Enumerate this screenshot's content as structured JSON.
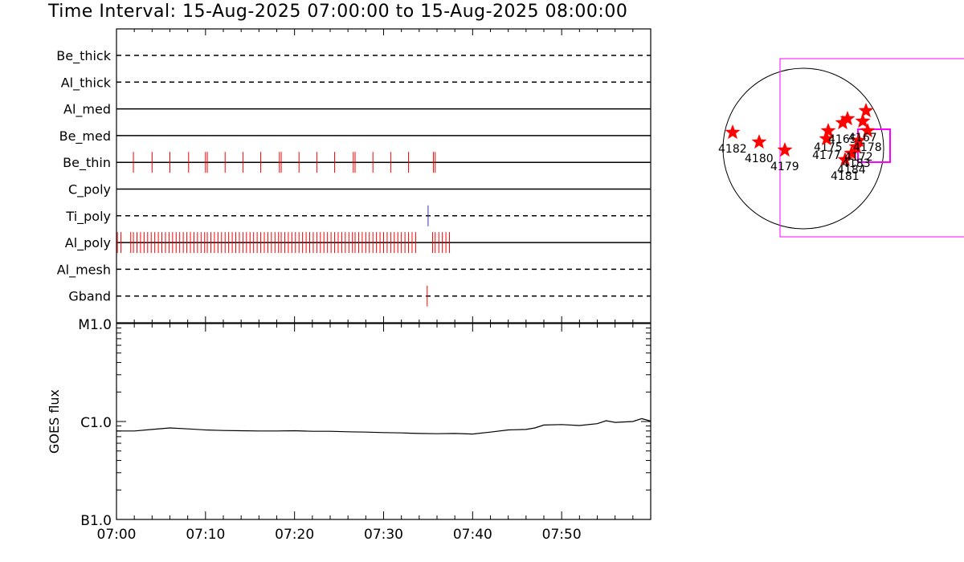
{
  "header": {
    "title": "Time Interval: 15-Aug-2025 07:00:00 to 15-Aug-2025 08:00:00"
  },
  "chart_data": [
    {
      "type": "timeline",
      "x_range_minutes": [
        0,
        60
      ],
      "x_tick_labels": [
        "07:00",
        "07:10",
        "07:20",
        "07:30",
        "07:40",
        "07:50"
      ],
      "x_tick_minutes": [
        0,
        10,
        20,
        30,
        40,
        50
      ],
      "rows": [
        {
          "label": "Be_thick",
          "style": "dashed",
          "events": [],
          "event_color": "#ff0000"
        },
        {
          "label": "Al_thick",
          "style": "dashed",
          "events": [],
          "event_color": "#ff0000"
        },
        {
          "label": "Al_med",
          "style": "solid",
          "events": [],
          "event_color": "#ff0000"
        },
        {
          "label": "Be_med",
          "style": "solid",
          "events": [],
          "event_color": "#ff0000"
        },
        {
          "label": "Be_thin",
          "style": "solid",
          "event_color": "#ff0000",
          "events": [
            1.9,
            4.0,
            6.0,
            8.1,
            10.0,
            10.2,
            12.2,
            14.2,
            16.2,
            18.3,
            18.5,
            20.5,
            22.5,
            24.5,
            26.6,
            26.8,
            28.8,
            30.8,
            32.8,
            35.6,
            35.8
          ]
        },
        {
          "label": "C_poly",
          "style": "solid",
          "events": [],
          "event_color": "#ff0000"
        },
        {
          "label": "Ti_poly",
          "style": "dashed",
          "event_color": "#3333aa",
          "events": [
            35.0
          ]
        },
        {
          "label": "Al_poly",
          "style": "solid",
          "event_color": "#ff0000",
          "events": [
            0.1,
            0.5,
            1.6,
            1.9,
            2.3,
            2.7,
            3.1,
            3.5,
            3.9,
            4.3,
            4.7,
            5.1,
            5.5,
            5.9,
            6.3,
            6.7,
            7.1,
            7.5,
            7.9,
            8.3,
            8.7,
            9.1,
            9.5,
            9.9,
            10.2,
            10.6,
            11.0,
            11.4,
            11.8,
            12.2,
            12.6,
            13.0,
            13.4,
            13.8,
            14.2,
            14.6,
            15.0,
            15.4,
            15.8,
            16.2,
            16.6,
            17.0,
            17.4,
            17.8,
            18.2,
            18.5,
            18.9,
            19.3,
            19.7,
            20.1,
            20.5,
            20.9,
            21.3,
            21.7,
            22.1,
            22.5,
            22.9,
            23.3,
            23.7,
            24.1,
            24.5,
            24.9,
            25.3,
            25.7,
            26.1,
            26.5,
            26.8,
            27.2,
            27.6,
            28.0,
            28.4,
            28.8,
            29.2,
            29.6,
            30.0,
            30.4,
            30.8,
            31.2,
            31.6,
            32.0,
            32.4,
            32.8,
            33.2,
            33.6,
            35.5,
            35.8,
            36.2,
            36.6,
            37.0,
            37.4
          ]
        },
        {
          "label": "Al_mesh",
          "style": "dashed",
          "events": [],
          "event_color": "#ff0000"
        },
        {
          "label": "Gband",
          "style": "dashed",
          "event_color": "#ff0000",
          "events": [
            34.9
          ]
        }
      ]
    },
    {
      "type": "line",
      "ylabel": "GOES flux",
      "y_scale": "log",
      "y_tick_labels": [
        "M1.0",
        "C1.0",
        "B1.0"
      ],
      "x_range_minutes": [
        0,
        60
      ],
      "x_tick_labels": [
        "07:00",
        "07:10",
        "07:20",
        "07:30",
        "07:40",
        "07:50"
      ],
      "series": [
        {
          "color": "#000000",
          "x": [
            0,
            2,
            4,
            6,
            8,
            10,
            12,
            14,
            16,
            18,
            20,
            22,
            24,
            26,
            28,
            30,
            32,
            34,
            36,
            38,
            40,
            42,
            44,
            46,
            47,
            48,
            50,
            52,
            54,
            55,
            56,
            58,
            59,
            60
          ],
          "y": [
            8e-07,
            8e-07,
            8.3e-07,
            8.6e-07,
            8.4e-07,
            8.2e-07,
            8.1e-07,
            8.05e-07,
            8e-07,
            8e-07,
            8.05e-07,
            7.95e-07,
            7.95e-07,
            7.85e-07,
            7.8e-07,
            7.7e-07,
            7.65e-07,
            7.55e-07,
            7.5e-07,
            7.55e-07,
            7.45e-07,
            7.8e-07,
            8.2e-07,
            8.3e-07,
            8.6e-07,
            9.2e-07,
            9.3e-07,
            9.1e-07,
            9.5e-07,
            1.02e-06,
            9.8e-07,
            1e-06,
            1.07e-06,
            1.01e-06
          ]
        }
      ]
    },
    {
      "type": "scatter",
      "annotations": [
        "4182",
        "4180",
        "4179",
        "4175",
        "4177",
        "4165",
        "4181",
        "4184",
        "4183",
        "4172",
        "4178",
        "4167"
      ],
      "points": [
        {
          "label": "4182",
          "x": -880,
          "y": 200
        },
        {
          "label": "4180",
          "x": -550,
          "y": 80
        },
        {
          "label": "4179",
          "x": -230,
          "y": -20
        },
        {
          "label": "4175",
          "x": 310,
          "y": 220
        },
        {
          "label": "4177",
          "x": 290,
          "y": 120
        },
        {
          "label": "4165",
          "x": 490,
          "y": 320
        },
        {
          "label": "",
          "x": 550,
          "y": 370
        },
        {
          "label": "",
          "x": 780,
          "y": 470
        },
        {
          "label": "4181",
          "x": 520,
          "y": -140
        },
        {
          "label": "4184",
          "x": 600,
          "y": -60
        },
        {
          "label": "4183",
          "x": 660,
          "y": 20
        },
        {
          "label": "4172",
          "x": 690,
          "y": 100
        },
        {
          "label": "4178",
          "x": 800,
          "y": 220
        },
        {
          "label": "4167",
          "x": 740,
          "y": 340
        }
      ],
      "star_color": "#ff0000",
      "box_color": "#ff00ff"
    }
  ]
}
